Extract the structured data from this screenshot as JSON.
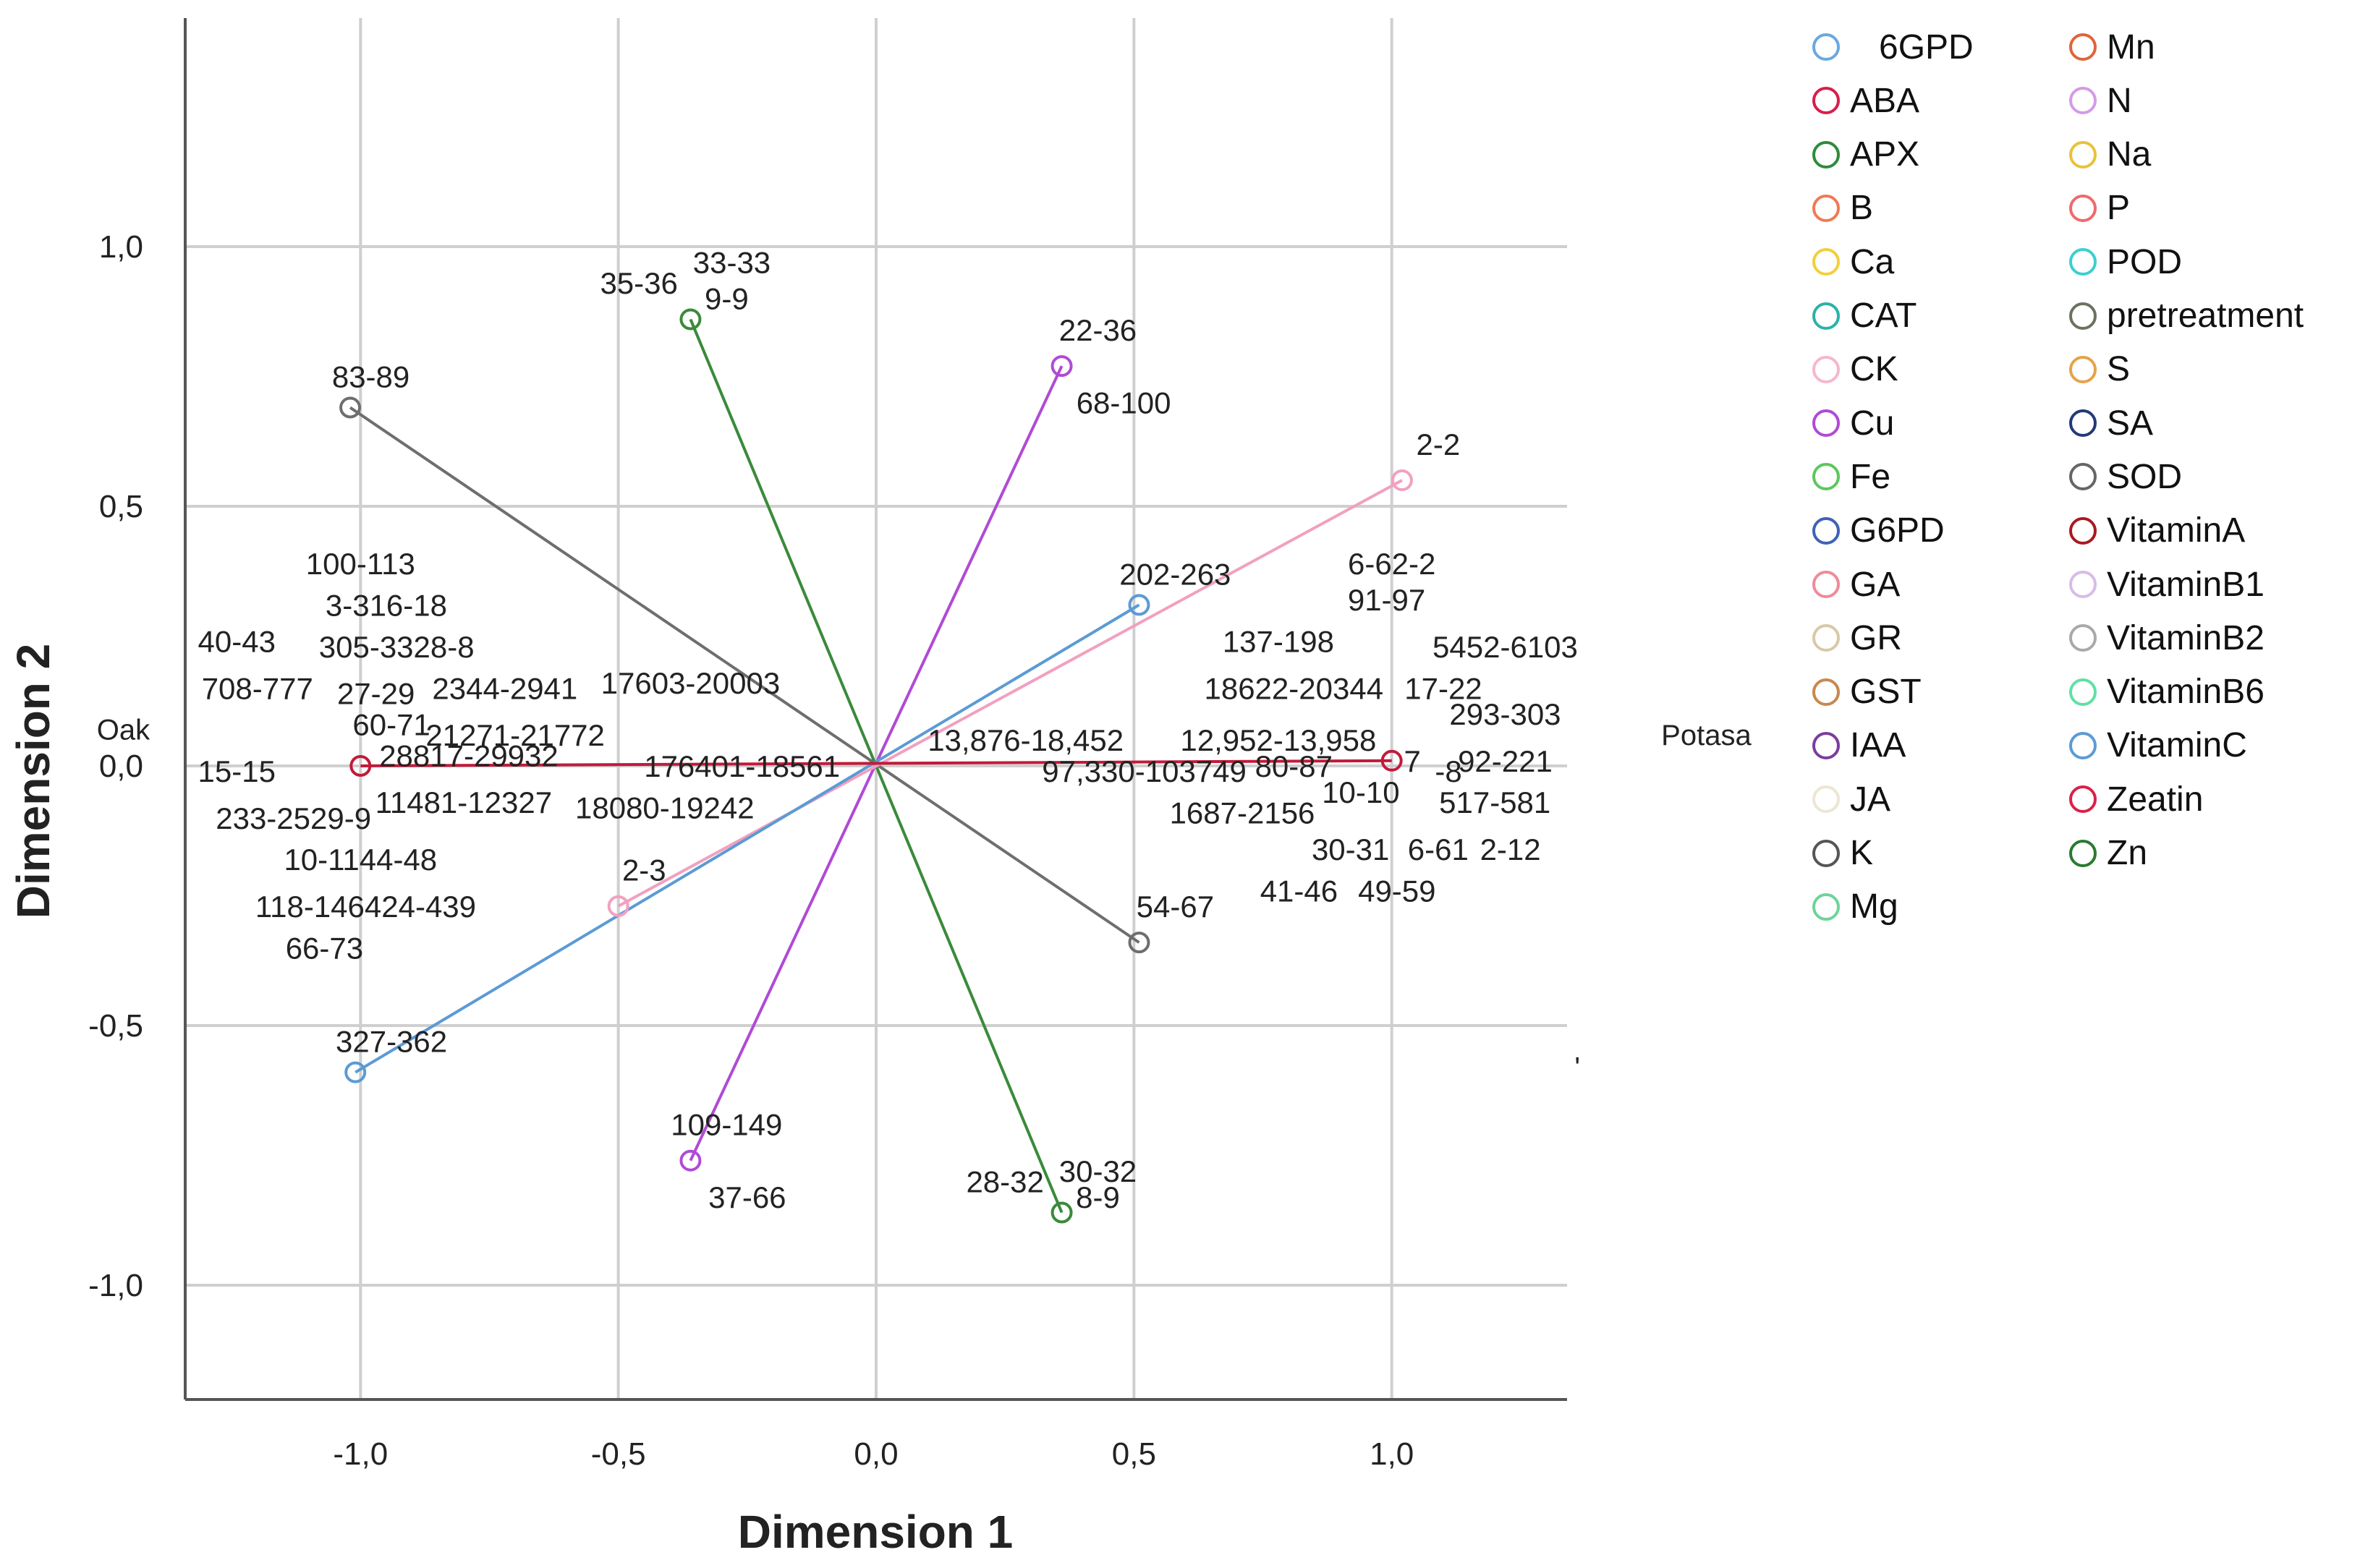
{
  "chart_data": {
    "type": "scatter",
    "subtype": "biplot",
    "xlabel": "Dimension 1",
    "ylabel": "Dimension 2",
    "xlim": [
      -1.34,
      1.34
    ],
    "ylim": [
      -1.22,
      1.44
    ],
    "xticks": [
      -1.0,
      -0.5,
      0.0,
      0.5,
      1.0
    ],
    "xtick_labels": [
      "-1,0",
      "-0,5",
      "0,0",
      "0,5",
      "1,0"
    ],
    "yticks": [
      -1.0,
      -0.5,
      0.0,
      0.5,
      1.0
    ],
    "ytick_labels": [
      "-1,0",
      "-0,5",
      "0,0",
      "0,5",
      "1,0"
    ],
    "grid": true,
    "legend_position": "right",
    "vectors": [
      {
        "series": "Zn",
        "color": "#3a8a3a",
        "from": [
          -0.36,
          0.86
        ],
        "to": [
          0.36,
          -0.86
        ]
      },
      {
        "series": "Cu",
        "color": "#b04ad6",
        "from": [
          0.36,
          0.77
        ],
        "to": [
          -0.36,
          -0.76
        ]
      },
      {
        "series": "SOD",
        "color": "#6e6e6e",
        "from": [
          -1.02,
          0.69
        ],
        "to": [
          0.51,
          -0.34
        ]
      },
      {
        "series": "CK",
        "color": "#f2a0c0",
        "from": [
          -0.5,
          -0.27
        ],
        "to": [
          1.02,
          0.55
        ]
      },
      {
        "series": "VitaminC",
        "color": "#5b9bd5",
        "from": [
          -1.01,
          -0.59
        ],
        "to": [
          0.51,
          0.31
        ]
      },
      {
        "series": "Zeatin",
        "color": "#c21a3a",
        "from": [
          -1.0,
          0.0
        ],
        "to": [
          1.0,
          0.01
        ]
      }
    ],
    "points": [
      {
        "series": "Zn",
        "x": -0.36,
        "y": 0.86
      },
      {
        "series": "Zn",
        "x": 0.36,
        "y": -0.86
      },
      {
        "series": "Cu",
        "x": 0.36,
        "y": 0.77
      },
      {
        "series": "Cu",
        "x": -0.36,
        "y": -0.76
      },
      {
        "series": "SOD",
        "x": -1.02,
        "y": 0.69
      },
      {
        "series": "SOD",
        "x": 0.51,
        "y": -0.34
      },
      {
        "series": "CK",
        "x": -0.5,
        "y": -0.27
      },
      {
        "series": "CK",
        "x": 1.02,
        "y": 0.55
      },
      {
        "series": "VitaminC",
        "x": -1.01,
        "y": -0.59
      },
      {
        "series": "VitaminC",
        "x": 0.51,
        "y": 0.31
      },
      {
        "series": "Zeatin",
        "x": -1.0,
        "y": 0.0
      },
      {
        "series": "Zeatin",
        "x": 1.0,
        "y": 0.01
      }
    ],
    "point_labels": [
      {
        "text": "33-33",
        "x": -0.28,
        "y": 0.97
      },
      {
        "text": "35-36",
        "x": -0.46,
        "y": 0.93
      },
      {
        "text": "9-9",
        "x": -0.29,
        "y": 0.9
      },
      {
        "text": "83-89",
        "x": -0.98,
        "y": 0.75
      },
      {
        "text": "22-36",
        "x": 0.43,
        "y": 0.84
      },
      {
        "text": "68-100",
        "x": 0.48,
        "y": 0.7
      },
      {
        "text": "2-2",
        "x": 1.09,
        "y": 0.62
      },
      {
        "text": "6-62-2",
        "x": 1.0,
        "y": 0.39
      },
      {
        "text": "91-97",
        "x": 0.99,
        "y": 0.32
      },
      {
        "text": "202-263",
        "x": 0.58,
        "y": 0.37
      },
      {
        "text": "137-198",
        "x": 0.78,
        "y": 0.24
      },
      {
        "text": "5452-6103",
        "x": 1.22,
        "y": 0.23
      },
      {
        "text": "18622-20344",
        "x": 0.81,
        "y": 0.15
      },
      {
        "text": "17-22",
        "x": 1.1,
        "y": 0.15
      },
      {
        "text": "293-303",
        "x": 1.22,
        "y": 0.1
      },
      {
        "text": "92-221",
        "x": 1.22,
        "y": 0.01
      },
      {
        "text": "12,952-13,958",
        "x": 0.78,
        "y": 0.05
      },
      {
        "text": "13,876-18,452",
        "x": 0.29,
        "y": 0.05
      },
      {
        "text": "97,330-103749",
        "x": 0.52,
        "y": -0.01
      },
      {
        "text": "80-87",
        "x": 0.81,
        "y": 0.0
      },
      {
        "text": "7",
        "x": 1.04,
        "y": 0.01
      },
      {
        "text": "-8",
        "x": 1.11,
        "y": -0.01
      },
      {
        "text": "10-10",
        "x": 0.94,
        "y": -0.05
      },
      {
        "text": "517-581",
        "x": 1.2,
        "y": -0.07
      },
      {
        "text": "1687-2156",
        "x": 0.71,
        "y": -0.09
      },
      {
        "text": "30-31",
        "x": 0.92,
        "y": -0.16
      },
      {
        "text": "6-61",
        "x": 1.09,
        "y": -0.16
      },
      {
        "text": "2-12",
        "x": 1.23,
        "y": -0.16
      },
      {
        "text": "41-46",
        "x": 0.82,
        "y": -0.24
      },
      {
        "text": "49-59",
        "x": 1.01,
        "y": -0.24
      },
      {
        "text": "54-67",
        "x": 0.58,
        "y": -0.27
      },
      {
        "text": "100-113",
        "x": -1.0,
        "y": 0.39
      },
      {
        "text": "3-316-18",
        "x": -0.95,
        "y": 0.31
      },
      {
        "text": "40-43",
        "x": -1.24,
        "y": 0.24
      },
      {
        "text": "305-3328-8",
        "x": -0.93,
        "y": 0.23
      },
      {
        "text": "708-777",
        "x": -1.2,
        "y": 0.15
      },
      {
        "text": "27-29",
        "x": -0.97,
        "y": 0.14
      },
      {
        "text": "2344-2941",
        "x": -0.72,
        "y": 0.15
      },
      {
        "text": "17603-20003",
        "x": -0.36,
        "y": 0.16
      },
      {
        "text": "60-71",
        "x": -0.94,
        "y": 0.08
      },
      {
        "text": "21271-21772",
        "x": -0.7,
        "y": 0.06
      },
      {
        "text": "28817-29932",
        "x": -0.79,
        "y": 0.02
      },
      {
        "text": "176401-18561",
        "x": -0.26,
        "y": 0.0
      },
      {
        "text": "15-15",
        "x": -1.24,
        "y": -0.01
      },
      {
        "text": "11481-12327",
        "x": -0.8,
        "y": -0.07
      },
      {
        "text": "18080-19242",
        "x": -0.41,
        "y": -0.08
      },
      {
        "text": "233-2529-9",
        "x": -1.13,
        "y": -0.1
      },
      {
        "text": "10-1144-48",
        "x": -1.0,
        "y": -0.18
      },
      {
        "text": "2-3",
        "x": -0.45,
        "y": -0.2
      },
      {
        "text": "118-146424-439",
        "x": -0.99,
        "y": -0.27
      },
      {
        "text": "66-73",
        "x": -1.07,
        "y": -0.35
      },
      {
        "text": "327-362",
        "x": -0.94,
        "y": -0.53
      },
      {
        "text": "109-149",
        "x": -0.29,
        "y": -0.69
      },
      {
        "text": "37-66",
        "x": -0.25,
        "y": -0.83
      },
      {
        "text": "30-32",
        "x": 0.43,
        "y": -0.78
      },
      {
        "text": "28-32",
        "x": 0.25,
        "y": -0.8
      },
      {
        "text": "8-9",
        "x": 0.43,
        "y": -0.83
      }
    ],
    "annotations": [
      {
        "text": "Oak",
        "x": -1.46,
        "y": 0.07
      },
      {
        "text": "Potasa",
        "x": 1.61,
        "y": 0.06
      },
      {
        "text": "'",
        "x": 1.36,
        "y": -0.58
      }
    ],
    "legend": [
      {
        "name": "6GPD",
        "color": "#6aa8e0"
      },
      {
        "name": "ABA",
        "color": "#d81e4a"
      },
      {
        "name": "APX",
        "color": "#2e8b3a"
      },
      {
        "name": "B",
        "color": "#f07a55"
      },
      {
        "name": "Ca",
        "color": "#f2cf3a"
      },
      {
        "name": "CAT",
        "color": "#2bb3a5"
      },
      {
        "name": "CK",
        "color": "#f7b7cb"
      },
      {
        "name": "Cu",
        "color": "#b04ad6"
      },
      {
        "name": "Fe",
        "color": "#5cc75c"
      },
      {
        "name": "G6PD",
        "color": "#3f62b5"
      },
      {
        "name": "GA",
        "color": "#f08a9a"
      },
      {
        "name": "GR",
        "color": "#d8c9a5"
      },
      {
        "name": "GST",
        "color": "#c9884e"
      },
      {
        "name": "IAA",
        "color": "#7b3c9e"
      },
      {
        "name": "JA",
        "color": "#ede6d2"
      },
      {
        "name": "K",
        "color": "#555555"
      },
      {
        "name": "Mg",
        "color": "#6fd39a"
      },
      {
        "name": "Mn",
        "color": "#e0643c"
      },
      {
        "name": "N",
        "color": "#d49ae8"
      },
      {
        "name": "Na",
        "color": "#e9c23a"
      },
      {
        "name": "P",
        "color": "#f06a6a"
      },
      {
        "name": "POD",
        "color": "#3ccfd0"
      },
      {
        "name": "pretreatment",
        "color": "#6a735e"
      },
      {
        "name": "S",
        "color": "#e6a24a"
      },
      {
        "name": "SA",
        "color": "#233a78"
      },
      {
        "name": "SOD",
        "color": "#666666"
      },
      {
        "name": "VitaminA",
        "color": "#a81a22"
      },
      {
        "name": "VitaminB1",
        "color": "#d7bce8"
      },
      {
        "name": "VitaminB2",
        "color": "#a9a9a9"
      },
      {
        "name": "VitaminB6",
        "color": "#5fe0a6"
      },
      {
        "name": "VitaminC",
        "color": "#5b9bd5"
      },
      {
        "name": "Zeatin",
        "color": "#d8224a"
      },
      {
        "name": "Zn",
        "color": "#2a7a30"
      }
    ]
  }
}
